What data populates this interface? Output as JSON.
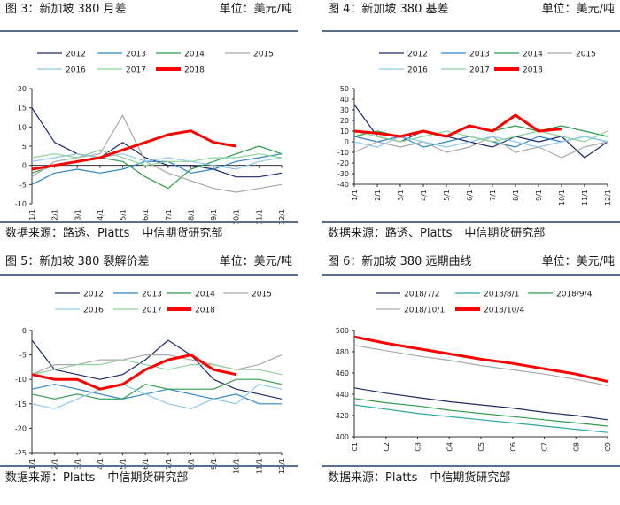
{
  "panels": [
    {
      "title": "图 3：新加坡 380 月差",
      "unit": "单位：美元/吨",
      "source": "数据来源：路透、Platts",
      "org": "中信期货研究部"
    },
    {
      "title": "图 4：新加坡 380 基差",
      "unit": "单位：美元/吨",
      "source": "数据来源：路透、Platts",
      "org": "中信期货研究部"
    },
    {
      "title": "图 5：新加坡 380 裂解价差",
      "unit": "单位：美元/吨",
      "source": "数据来源：Platts",
      "org": "中信期货研究部"
    },
    {
      "title": "图 6：新加坡 380 远期曲线",
      "unit": "单位：美元/吨",
      "source": "数据来源：Platts",
      "org": "中信期货研究部"
    }
  ],
  "colors": {
    "2012": "#1f2a6b",
    "2013": "#2e86c8",
    "2014": "#2e9e4a",
    "2015": "#a9a9a9",
    "2016": "#8ec9ee",
    "2017": "#8fd49a",
    "2018": "#ff0000",
    "2018/7/2": "#1f2a6b",
    "2018/8/1": "#27a9a0",
    "2018/9/4": "#2e9e4a",
    "2018/10/1": "#a9a9a9",
    "2018/10/4": "#ff0000",
    "rule": "#5a6f93"
  },
  "chart_data": [
    {
      "type": "line",
      "categories": [
        "1/1",
        "2/1",
        "3/1",
        "4/1",
        "5/1",
        "6/1",
        "7/1",
        "8/1",
        "9/1",
        "10/1",
        "11/1",
        "12/1"
      ],
      "ylim": [
        -10,
        20
      ],
      "yticks": [
        -10,
        -5,
        0,
        5,
        10,
        15,
        20
      ],
      "legend": "top",
      "series": [
        {
          "name": "2012",
          "values": [
            15,
            6,
            3,
            2,
            6,
            2,
            0,
            0,
            -1,
            -3,
            -3,
            -2
          ]
        },
        {
          "name": "2013",
          "values": [
            -5,
            -2,
            -1,
            -2,
            -1,
            1,
            1,
            -2,
            -1,
            1,
            2,
            3
          ]
        },
        {
          "name": "2014",
          "values": [
            -2,
            0,
            1,
            2,
            1,
            -3,
            -6,
            -1,
            1,
            3,
            5,
            3
          ]
        },
        {
          "name": "2015",
          "values": [
            -3,
            1,
            2,
            3,
            13,
            1,
            -2,
            -4,
            -6,
            -7,
            -6,
            -5
          ]
        },
        {
          "name": "2016",
          "values": [
            1,
            2,
            3,
            2,
            3,
            1,
            2,
            1,
            0,
            -1,
            1,
            2
          ]
        },
        {
          "name": "2017",
          "values": [
            2,
            3,
            2,
            4,
            2,
            0,
            1,
            1,
            2,
            2,
            3,
            2
          ]
        },
        {
          "name": "2018",
          "values": [
            -1,
            0,
            1,
            2,
            4,
            6,
            8,
            9,
            6,
            5,
            null,
            null
          ]
        }
      ]
    },
    {
      "type": "line",
      "categories": [
        "1/1",
        "2/1",
        "3/1",
        "4/1",
        "5/1",
        "6/1",
        "7/1",
        "8/1",
        "9/1",
        "10/1",
        "11/1",
        "12/1"
      ],
      "ylim": [
        -40,
        50
      ],
      "yticks": [
        -40,
        -30,
        -20,
        -10,
        0,
        10,
        20,
        30,
        40,
        50
      ],
      "legend": "top",
      "series": [
        {
          "name": "2012",
          "values": [
            35,
            5,
            0,
            10,
            5,
            0,
            -5,
            5,
            0,
            5,
            -15,
            0
          ]
        },
        {
          "name": "2013",
          "values": [
            5,
            0,
            5,
            -5,
            0,
            5,
            0,
            -5,
            5,
            0,
            5,
            0
          ]
        },
        {
          "name": "2014",
          "values": [
            5,
            10,
            5,
            10,
            5,
            15,
            10,
            15,
            10,
            15,
            10,
            5
          ]
        },
        {
          "name": "2015",
          "values": [
            -10,
            0,
            -5,
            0,
            -10,
            -5,
            5,
            -10,
            -5,
            -15,
            -5,
            0
          ]
        },
        {
          "name": "2016",
          "values": [
            0,
            -5,
            5,
            0,
            -5,
            0,
            5,
            0,
            -5,
            0,
            5,
            0
          ]
        },
        {
          "name": "2017",
          "values": [
            10,
            5,
            0,
            5,
            10,
            5,
            0,
            5,
            10,
            5,
            0,
            10
          ]
        },
        {
          "name": "2018",
          "values": [
            10,
            8,
            5,
            10,
            5,
            15,
            10,
            25,
            10,
            12,
            null,
            null
          ]
        }
      ]
    },
    {
      "type": "line",
      "categories": [
        "1/1",
        "2/1",
        "3/1",
        "4/1",
        "5/1",
        "6/1",
        "7/1",
        "8/1",
        "9/1",
        "10/1",
        "11/1",
        "12/1"
      ],
      "ylim": [
        -25,
        0
      ],
      "yticks": [
        -25,
        -20,
        -15,
        -10,
        -5,
        0
      ],
      "legend": "top",
      "series": [
        {
          "name": "2012",
          "values": [
            -2,
            -8,
            -9,
            -10,
            -9,
            -6,
            -2,
            -5,
            -10,
            -12,
            -13,
            -14
          ]
        },
        {
          "name": "2013",
          "values": [
            -12,
            -11,
            -12,
            -13,
            -14,
            -13,
            -12,
            -13,
            -14,
            -13,
            -15,
            -15
          ]
        },
        {
          "name": "2014",
          "values": [
            -13,
            -14,
            -13,
            -14,
            -14,
            -11,
            -12,
            -12,
            -12,
            -10,
            -10,
            -11
          ]
        },
        {
          "name": "2015",
          "values": [
            -9,
            -7,
            -7,
            -6,
            -6,
            -5,
            -5,
            -6,
            -7,
            -8,
            -7,
            -5
          ]
        },
        {
          "name": "2016",
          "values": [
            -15,
            -16,
            -14,
            -12,
            -11,
            -13,
            -15,
            -16,
            -14,
            -15,
            -11,
            -12
          ]
        },
        {
          "name": "2017",
          "values": [
            -9,
            -8,
            -7,
            -7,
            -6,
            -7,
            -8,
            -7,
            -7,
            -8,
            -8,
            -9
          ]
        },
        {
          "name": "2018",
          "values": [
            -9,
            -10,
            -10,
            -12,
            -11,
            -8,
            -6,
            -5,
            -8,
            -9,
            null,
            null
          ]
        }
      ]
    },
    {
      "type": "line",
      "categories": [
        "C1",
        "C2",
        "C3",
        "C4",
        "C5",
        "C6",
        "C7",
        "C8",
        "C9"
      ],
      "ylim": [
        400,
        500
      ],
      "yticks": [
        400,
        420,
        440,
        460,
        480,
        500
      ],
      "legend": "top",
      "series": [
        {
          "name": "2018/7/2",
          "values": [
            446,
            441,
            437,
            433,
            430,
            427,
            423,
            420,
            416
          ]
        },
        {
          "name": "2018/8/1",
          "values": [
            430,
            426,
            422,
            419,
            416,
            413,
            410,
            407,
            404
          ]
        },
        {
          "name": "2018/9/4",
          "values": [
            436,
            432,
            429,
            425,
            422,
            419,
            416,
            413,
            410
          ]
        },
        {
          "name": "2018/10/1",
          "values": [
            486,
            481,
            476,
            472,
            467,
            463,
            459,
            454,
            448
          ]
        },
        {
          "name": "2018/10/4",
          "values": [
            494,
            488,
            483,
            478,
            473,
            469,
            464,
            459,
            452
          ]
        }
      ]
    }
  ]
}
